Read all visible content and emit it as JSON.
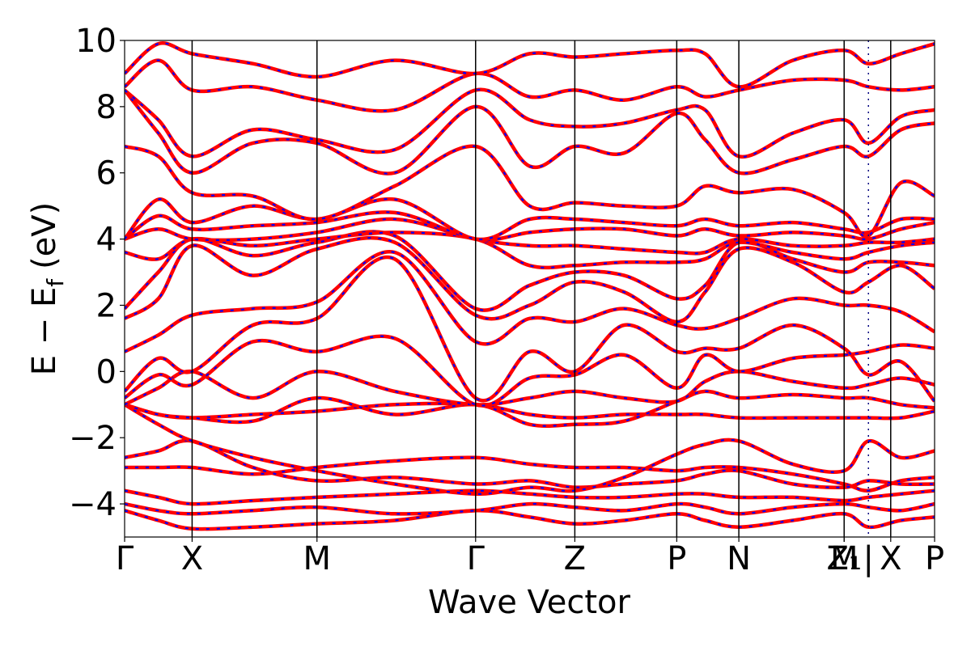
{
  "chart_data": {
    "type": "line",
    "title": "",
    "xlabel": "Wave Vector",
    "ylabel_main": "E − E",
    "ylabel_sub": "f",
    "ylabel_unit": "(eV)",
    "ylim": [
      -5,
      10
    ],
    "yticks": [
      -4,
      -2,
      0,
      2,
      4,
      6,
      8,
      10
    ],
    "ytick_labels": [
      "−4",
      "−2",
      "0",
      "2",
      "4",
      "6",
      "8",
      "10"
    ],
    "grid": false,
    "legend": "none",
    "colors": {
      "line": "#ff0000",
      "dash": "#0000ff",
      "axis": "#000000"
    },
    "xlim": [
      0,
      12
    ],
    "kpoints": [
      {
        "label": "Γ",
        "x": 0
      },
      {
        "label": "X",
        "x": 1
      },
      {
        "label": "M",
        "x": 2.85
      },
      {
        "label": "Γ",
        "x": 5.2
      },
      {
        "label": "Z",
        "x": 6.67
      },
      {
        "label": "P",
        "x": 8.18
      },
      {
        "label": "N",
        "x": 9.1
      },
      {
        "label": "Z₁",
        "x": 10.66
      },
      {
        "label": "M",
        "x": 10.66
      },
      {
        "label": "|",
        "x": 11.02
      },
      {
        "label": "X",
        "x": 11.35
      },
      {
        "label": "P",
        "x": 12
      }
    ],
    "series": [
      {
        "x": [
          0,
          0.5,
          1,
          1.9,
          2.85,
          4,
          5.2,
          6,
          6.67,
          7.4,
          8.18,
          8.6,
          9.1,
          9.9,
          10.66,
          11.02,
          11.5,
          12
        ],
        "values": [
          -4.2,
          -4.5,
          -4.75,
          -4.7,
          -4.6,
          -4.5,
          -4.2,
          -4.4,
          -4.6,
          -4.5,
          -4.3,
          -4.5,
          -4.7,
          -4.5,
          -4.3,
          -4.7,
          -4.5,
          -4.4
        ]
      },
      {
        "x": [
          0,
          0.5,
          1,
          1.9,
          2.85,
          4,
          5.2,
          6,
          6.67,
          7.4,
          8.18,
          8.6,
          9.1,
          9.9,
          10.66,
          11.02,
          11.5,
          12
        ],
        "values": [
          -4.0,
          -4.2,
          -4.3,
          -4.2,
          -4.1,
          -4.3,
          -4.2,
          -4.0,
          -4.1,
          -4.2,
          -4.0,
          -4.1,
          -4.3,
          -4.1,
          -4.0,
          -4.1,
          -4.2,
          -4.0
        ]
      },
      {
        "x": [
          0,
          0.5,
          1,
          1.9,
          2.85,
          4,
          5.2,
          6,
          6.67,
          7.4,
          8.18,
          8.6,
          9.1,
          9.9,
          10.66,
          11.02,
          11.5,
          12
        ],
        "values": [
          -3.6,
          -3.8,
          -4.0,
          -3.9,
          -3.8,
          -3.7,
          -3.6,
          -3.7,
          -3.8,
          -3.8,
          -3.7,
          -3.7,
          -3.8,
          -3.8,
          -3.9,
          -3.8,
          -3.7,
          -3.6
        ]
      },
      {
        "x": [
          0,
          0.5,
          1,
          1.9,
          2.85,
          4,
          5.2,
          6,
          6.67,
          7.4,
          8.18,
          8.6,
          9.1,
          9.9,
          10.66,
          11.02,
          11.5,
          12
        ],
        "values": [
          -2.9,
          -2.9,
          -2.9,
          -3.1,
          -2.9,
          -2.7,
          -2.6,
          -2.8,
          -2.9,
          -2.9,
          -3.0,
          -2.9,
          -2.9,
          -3.1,
          -3.4,
          -3.6,
          -3.3,
          -3.2
        ]
      },
      {
        "x": [
          0,
          0.5,
          1,
          1.9,
          2.85,
          4,
          5.2,
          6,
          6.67,
          7.4,
          8.18,
          8.6,
          9.1,
          9.9,
          10.66,
          11.02,
          11.5,
          12
        ],
        "values": [
          -2.6,
          -2.4,
          -2.1,
          -2.9,
          -3.3,
          -3.2,
          -3.4,
          -3.3,
          -3.5,
          -3.4,
          -3.3,
          -3.1,
          -3.0,
          -3.4,
          -3.5,
          -3.3,
          -3.4,
          -3.4
        ]
      },
      {
        "x": [
          0,
          0.5,
          1,
          1.9,
          2.85,
          4,
          5.2,
          6,
          6.67,
          7.4,
          8.18,
          8.6,
          9.1,
          9.9,
          10.66,
          11.02,
          11.5,
          12
        ],
        "values": [
          -1.0,
          -1.6,
          -2.1,
          -2.6,
          -3.0,
          -3.4,
          -3.7,
          -3.5,
          -3.6,
          -3.2,
          -2.5,
          -2.2,
          -2.1,
          -2.8,
          -3.0,
          -2.1,
          -2.6,
          -2.4
        ]
      },
      {
        "x": [
          0,
          0.5,
          1,
          1.9,
          2.85,
          4,
          5.2,
          6,
          6.67,
          7.4,
          8.18,
          8.6,
          9.1,
          9.9,
          10.66,
          11.02,
          11.5,
          12
        ],
        "values": [
          -1.0,
          -1.3,
          -1.4,
          -1.3,
          -1.2,
          -1.0,
          -1.0,
          -1.3,
          -1.4,
          -1.3,
          -1.3,
          -1.3,
          -1.4,
          -1.4,
          -1.4,
          -1.4,
          -1.4,
          -1.2
        ]
      },
      {
        "x": [
          0,
          0.5,
          1,
          1.9,
          2.85,
          4,
          5.2,
          6,
          6.67,
          7.4,
          8.18,
          8.6,
          9.1,
          9.9,
          10.66,
          11.02,
          11.5,
          12
        ],
        "values": [
          -1.0,
          -1.3,
          -1.4,
          -1.5,
          -0.8,
          -1.3,
          -1.0,
          -1.6,
          -1.6,
          -1.5,
          -0.9,
          -0.6,
          -0.8,
          -0.7,
          -0.8,
          -0.8,
          -1.0,
          -1.1
        ]
      },
      {
        "x": [
          0,
          0.5,
          1,
          1.9,
          2.85,
          4,
          5.2,
          6,
          6.67,
          7.4,
          8.18,
          8.6,
          9.1,
          9.9,
          10.66,
          11.02,
          11.5,
          12
        ],
        "values": [
          -1.0,
          -0.5,
          0.0,
          -0.8,
          0.0,
          -0.6,
          -1.0,
          -0.8,
          -0.6,
          -0.8,
          -0.9,
          -0.3,
          0.0,
          -0.3,
          -0.5,
          -0.4,
          -0.2,
          -0.4
        ]
      },
      {
        "x": [
          0,
          0.5,
          1,
          1.9,
          2.85,
          4,
          5.2,
          6,
          6.67,
          7.4,
          8.18,
          8.6,
          9.1,
          9.9,
          10.66,
          11.02,
          11.5,
          12
        ],
        "values": [
          -0.8,
          -0.1,
          -0.4,
          0.9,
          0.6,
          1.0,
          -1.0,
          -0.2,
          -0.1,
          0.5,
          -0.5,
          0.5,
          0.0,
          0.4,
          0.5,
          0.6,
          0.8,
          0.7
        ]
      },
      {
        "x": [
          0,
          0.5,
          1,
          1.9,
          2.85,
          4,
          5.2,
          6,
          6.67,
          7.4,
          8.18,
          8.6,
          9.1,
          9.9,
          10.66,
          11.02,
          11.5,
          12
        ],
        "values": [
          -0.6,
          0.4,
          0.0,
          1.4,
          1.6,
          3.4,
          -0.8,
          0.6,
          0.0,
          1.4,
          0.6,
          0.7,
          0.7,
          1.4,
          0.7,
          -0.1,
          0.3,
          -0.9
        ]
      },
      {
        "x": [
          0,
          0.5,
          1,
          1.9,
          2.85,
          4,
          5.2,
          6,
          6.67,
          7.4,
          8.18,
          8.6,
          9.1,
          9.9,
          10.66,
          11.02,
          11.5,
          12
        ],
        "values": [
          0.6,
          1.1,
          1.7,
          1.9,
          2.1,
          3.6,
          0.9,
          1.6,
          1.5,
          1.9,
          1.4,
          1.3,
          1.6,
          2.2,
          2.0,
          2.0,
          1.8,
          1.2
        ]
      },
      {
        "x": [
          0,
          0.5,
          1,
          1.9,
          2.85,
          4,
          5.2,
          6,
          6.67,
          7.4,
          8.18,
          8.6,
          9.1,
          9.9,
          10.66,
          11.02,
          11.5,
          12
        ],
        "values": [
          1.6,
          2.2,
          3.8,
          2.9,
          3.7,
          3.9,
          1.7,
          2.0,
          2.7,
          2.4,
          1.5,
          2.4,
          3.7,
          3.3,
          2.4,
          2.7,
          3.2,
          2.5
        ]
      },
      {
        "x": [
          0,
          0.5,
          1,
          1.9,
          2.85,
          4,
          5.2,
          6,
          6.67,
          7.4,
          8.18,
          8.6,
          9.1,
          9.9,
          10.66,
          11.02,
          11.5,
          12
        ],
        "values": [
          1.9,
          3.0,
          4.0,
          3.5,
          3.9,
          4.1,
          1.9,
          2.6,
          3.0,
          2.9,
          2.2,
          2.6,
          3.9,
          3.4,
          3.0,
          3.3,
          3.3,
          3.2
        ]
      },
      {
        "x": [
          0,
          0.5,
          1,
          1.9,
          2.85,
          4,
          5.2,
          6,
          6.67,
          7.4,
          8.18,
          8.6,
          9.1,
          9.9,
          10.66,
          11.02,
          11.5,
          12
        ],
        "values": [
          3.6,
          3.4,
          4.0,
          3.8,
          4.0,
          4.2,
          4.0,
          3.2,
          3.2,
          3.3,
          3.3,
          3.4,
          3.9,
          3.6,
          3.4,
          3.6,
          3.8,
          3.9
        ]
      },
      {
        "x": [
          0,
          0.5,
          1,
          1.9,
          2.85,
          4,
          5.2,
          6,
          6.67,
          7.4,
          8.18,
          8.6,
          9.1,
          9.9,
          10.66,
          11.02,
          11.5,
          12
        ],
        "values": [
          4.0,
          4.3,
          4.0,
          4.0,
          4.2,
          4.6,
          4.0,
          3.8,
          3.8,
          3.7,
          3.6,
          3.6,
          4.0,
          3.8,
          3.8,
          3.9,
          3.9,
          4.0
        ]
      },
      {
        "x": [
          0,
          0.5,
          1,
          1.9,
          2.85,
          4,
          5.2,
          6,
          6.67,
          7.4,
          8.18,
          8.6,
          9.1,
          9.9,
          10.66,
          11.02,
          11.5,
          12
        ],
        "values": [
          4.0,
          4.7,
          4.3,
          4.4,
          4.5,
          4.8,
          4.0,
          4.2,
          4.3,
          4.3,
          4.1,
          4.3,
          4.1,
          4.2,
          4.1,
          4.0,
          4.3,
          4.5
        ]
      },
      {
        "x": [
          0,
          0.5,
          1,
          1.9,
          2.85,
          4,
          5.2,
          6,
          6.67,
          7.4,
          8.18,
          8.6,
          9.1,
          9.9,
          10.66,
          11.02,
          11.5,
          12
        ],
        "values": [
          4.0,
          5.2,
          4.5,
          5.0,
          4.6,
          5.2,
          4.0,
          4.6,
          4.6,
          4.5,
          4.4,
          4.6,
          4.4,
          4.5,
          4.3,
          4.2,
          4.6,
          4.6
        ]
      },
      {
        "x": [
          0,
          0.5,
          1,
          1.9,
          2.85,
          4,
          5.2,
          6,
          6.67,
          7.4,
          8.18,
          8.6,
          9.1,
          9.9,
          10.66,
          11.02,
          11.5,
          12
        ],
        "values": [
          6.8,
          6.5,
          5.4,
          5.3,
          4.6,
          5.6,
          6.8,
          5.0,
          5.1,
          5.0,
          5.0,
          5.6,
          5.4,
          5.5,
          4.8,
          4.1,
          5.7,
          5.3
        ]
      },
      {
        "x": [
          0,
          0.5,
          1,
          1.9,
          2.85,
          4,
          5.2,
          6,
          6.67,
          7.4,
          8.18,
          8.6,
          9.1,
          9.9,
          10.66,
          11.02,
          11.5,
          12
        ],
        "values": [
          8.5,
          7.2,
          6.0,
          6.9,
          6.9,
          6.0,
          8.0,
          6.2,
          6.8,
          6.6,
          7.8,
          7.0,
          6.0,
          6.4,
          6.8,
          6.5,
          7.3,
          7.5
        ]
      },
      {
        "x": [
          0,
          0.5,
          1,
          1.9,
          2.85,
          4,
          5.2,
          6,
          6.67,
          7.4,
          8.18,
          8.6,
          9.1,
          9.9,
          10.66,
          11.02,
          11.5,
          12
        ],
        "values": [
          8.5,
          7.6,
          6.5,
          7.3,
          7.0,
          6.7,
          8.5,
          7.6,
          7.4,
          7.5,
          7.9,
          7.9,
          6.5,
          7.2,
          7.6,
          6.9,
          7.7,
          7.9
        ]
      },
      {
        "x": [
          0,
          0.5,
          1,
          1.9,
          2.85,
          4,
          5.2,
          6,
          6.67,
          7.4,
          8.18,
          8.6,
          9.1,
          9.9,
          10.66,
          11.02,
          11.5,
          12
        ],
        "values": [
          8.6,
          9.4,
          8.5,
          8.6,
          8.2,
          7.9,
          9.0,
          8.3,
          8.5,
          8.2,
          8.6,
          8.3,
          8.5,
          8.8,
          8.8,
          8.6,
          8.5,
          8.6
        ]
      },
      {
        "x": [
          0,
          0.5,
          1,
          1.9,
          2.85,
          4,
          5.2,
          6,
          6.67,
          7.4,
          8.18,
          8.6,
          9.1,
          9.9,
          10.66,
          11.02,
          11.5,
          12
        ],
        "values": [
          9.0,
          9.9,
          9.6,
          9.3,
          8.9,
          9.4,
          9.0,
          9.6,
          9.5,
          9.6,
          9.7,
          9.6,
          8.6,
          9.4,
          9.7,
          9.3,
          9.6,
          9.9
        ]
      }
    ]
  }
}
